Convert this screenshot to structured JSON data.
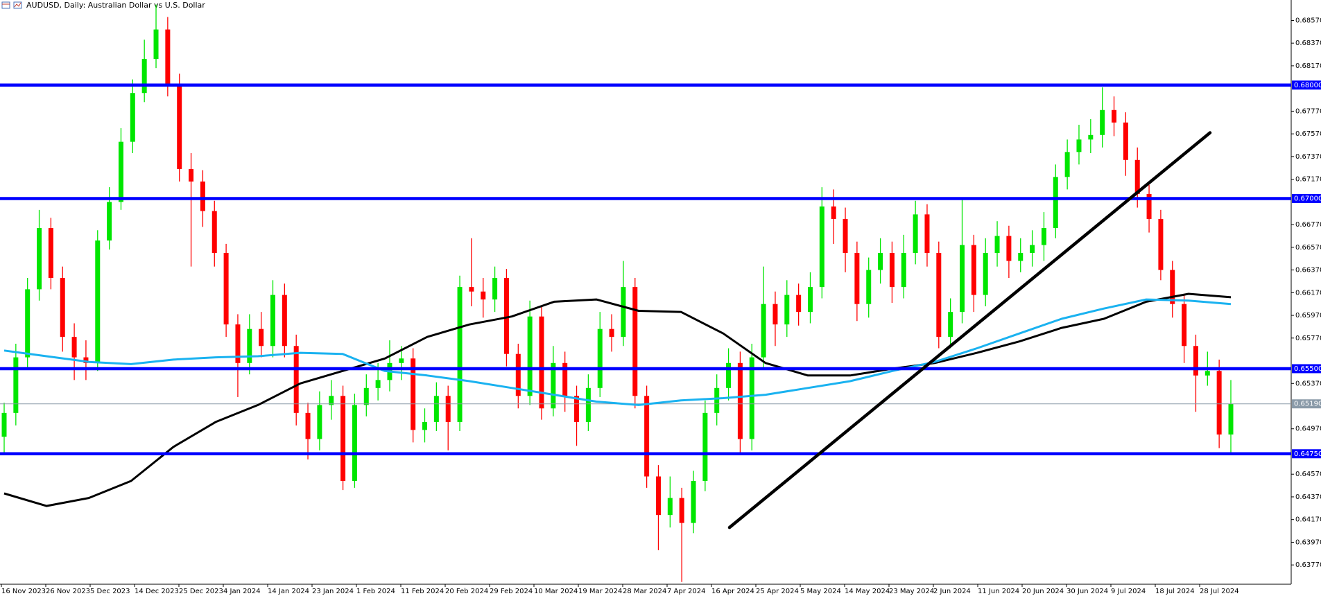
{
  "chart_data": {
    "type": "candlestick",
    "title": "AUDUSD, Daily:  Australian Dollar vs U.S. Dollar",
    "up_color": "#00e600",
    "down_color": "#ff0000",
    "categories": [
      "16 Nov 2023",
      "26 Nov 2023",
      "5 Dec 2023",
      "14 Dec 2023",
      "25 Dec 2023",
      "4 Jan 2024",
      "14 Jan 2024",
      "23 Jan 2024",
      "1 Feb 2024",
      "11 Feb 2024",
      "20 Feb 2024",
      "29 Feb 2024",
      "10 Mar 2024",
      "19 Mar 2024",
      "28 Mar 2024",
      "7 Apr 2024",
      "16 Apr 2024",
      "25 Apr 2024",
      "5 May 2024",
      "14 May 2024",
      "23 May 2024",
      "2 Jun 2024",
      "11 Jun 2024",
      "20 Jun 2024",
      "30 Jun 2024",
      "9 Jul 2024",
      "18 Jul 2024",
      "28 Jul 2024"
    ],
    "candles": [
      [
        0.649,
        0.652,
        0.6475,
        0.6511
      ],
      [
        0.6511,
        0.6572,
        0.65,
        0.656
      ],
      [
        0.656,
        0.663,
        0.655,
        0.662
      ],
      [
        0.662,
        0.669,
        0.661,
        0.6674
      ],
      [
        0.6674,
        0.6683,
        0.662,
        0.663
      ],
      [
        0.663,
        0.664,
        0.6565,
        0.6578
      ],
      [
        0.6578,
        0.659,
        0.654,
        0.656
      ],
      [
        0.656,
        0.6575,
        0.654,
        0.6555
      ],
      [
        0.6555,
        0.6672,
        0.6548,
        0.6663
      ],
      [
        0.6663,
        0.671,
        0.6655,
        0.6697
      ],
      [
        0.6697,
        0.6762,
        0.669,
        0.675
      ],
      [
        0.675,
        0.6805,
        0.674,
        0.6793
      ],
      [
        0.6793,
        0.684,
        0.6785,
        0.6823
      ],
      [
        0.6823,
        0.6871,
        0.6815,
        0.6849
      ],
      [
        0.6849,
        0.686,
        0.679,
        0.6801
      ],
      [
        0.6801,
        0.681,
        0.6715,
        0.6726
      ],
      [
        0.6726,
        0.674,
        0.664,
        0.6715
      ],
      [
        0.6715,
        0.6725,
        0.6675,
        0.6689
      ],
      [
        0.6689,
        0.6698,
        0.664,
        0.6652
      ],
      [
        0.6652,
        0.666,
        0.6578,
        0.6589
      ],
      [
        0.6589,
        0.6598,
        0.6525,
        0.6555
      ],
      [
        0.6555,
        0.6598,
        0.6545,
        0.6585
      ],
      [
        0.6585,
        0.66,
        0.656,
        0.657
      ],
      [
        0.657,
        0.6628,
        0.656,
        0.6615
      ],
      [
        0.6615,
        0.6625,
        0.656,
        0.657
      ],
      [
        0.657,
        0.658,
        0.65,
        0.6511
      ],
      [
        0.6511,
        0.652,
        0.647,
        0.6488
      ],
      [
        0.6488,
        0.653,
        0.6478,
        0.6518
      ],
      [
        0.6518,
        0.654,
        0.6505,
        0.6526
      ],
      [
        0.6526,
        0.6535,
        0.6443,
        0.6451
      ],
      [
        0.6451,
        0.6528,
        0.6445,
        0.6518
      ],
      [
        0.6518,
        0.6545,
        0.6508,
        0.6533
      ],
      [
        0.6533,
        0.6555,
        0.6522,
        0.654
      ],
      [
        0.654,
        0.6575,
        0.653,
        0.6555
      ],
      [
        0.6555,
        0.657,
        0.654,
        0.6559
      ],
      [
        0.6559,
        0.6568,
        0.6485,
        0.6496
      ],
      [
        0.6496,
        0.6515,
        0.6485,
        0.6503
      ],
      [
        0.6503,
        0.6538,
        0.6495,
        0.6526
      ],
      [
        0.6526,
        0.6535,
        0.6478,
        0.6503
      ],
      [
        0.6503,
        0.6632,
        0.6495,
        0.6622
      ],
      [
        0.6622,
        0.6665,
        0.6605,
        0.6618
      ],
      [
        0.6618,
        0.663,
        0.6595,
        0.6611
      ],
      [
        0.6611,
        0.664,
        0.66,
        0.663
      ],
      [
        0.663,
        0.6638,
        0.6552,
        0.6563
      ],
      [
        0.6563,
        0.6572,
        0.6515,
        0.6526
      ],
      [
        0.6526,
        0.661,
        0.6518,
        0.6596
      ],
      [
        0.6596,
        0.6605,
        0.6505,
        0.6515
      ],
      [
        0.6515,
        0.657,
        0.6508,
        0.6555
      ],
      [
        0.6555,
        0.6565,
        0.6512,
        0.6526
      ],
      [
        0.6526,
        0.6535,
        0.6482,
        0.6503
      ],
      [
        0.6503,
        0.6545,
        0.6495,
        0.6533
      ],
      [
        0.6533,
        0.66,
        0.6525,
        0.6585
      ],
      [
        0.6585,
        0.6598,
        0.6565,
        0.6578
      ],
      [
        0.6578,
        0.6645,
        0.657,
        0.6622
      ],
      [
        0.6622,
        0.663,
        0.6515,
        0.6526
      ],
      [
        0.6526,
        0.6535,
        0.6445,
        0.6455
      ],
      [
        0.6455,
        0.6465,
        0.639,
        0.6421
      ],
      [
        0.6421,
        0.6455,
        0.641,
        0.6436
      ],
      [
        0.6436,
        0.6445,
        0.6362,
        0.6414
      ],
      [
        0.6414,
        0.646,
        0.6405,
        0.6451
      ],
      [
        0.6451,
        0.6522,
        0.6442,
        0.6511
      ],
      [
        0.6511,
        0.6545,
        0.65,
        0.6533
      ],
      [
        0.6533,
        0.6568,
        0.6522,
        0.6555
      ],
      [
        0.6555,
        0.6565,
        0.6475,
        0.6488
      ],
      [
        0.6488,
        0.6572,
        0.6478,
        0.656
      ],
      [
        0.656,
        0.664,
        0.655,
        0.6607
      ],
      [
        0.6607,
        0.6618,
        0.657,
        0.6589
      ],
      [
        0.6589,
        0.6628,
        0.6578,
        0.6615
      ],
      [
        0.6615,
        0.6625,
        0.6588,
        0.66
      ],
      [
        0.66,
        0.6635,
        0.659,
        0.6622
      ],
      [
        0.6622,
        0.671,
        0.6612,
        0.6693
      ],
      [
        0.6693,
        0.6708,
        0.666,
        0.6682
      ],
      [
        0.6682,
        0.6692,
        0.6635,
        0.6652
      ],
      [
        0.6652,
        0.6662,
        0.6592,
        0.6607
      ],
      [
        0.6607,
        0.6648,
        0.6595,
        0.6637
      ],
      [
        0.6637,
        0.6665,
        0.6625,
        0.6652
      ],
      [
        0.6652,
        0.6662,
        0.6608,
        0.6622
      ],
      [
        0.6622,
        0.6668,
        0.6612,
        0.6652
      ],
      [
        0.6652,
        0.6698,
        0.6642,
        0.6686
      ],
      [
        0.6686,
        0.6695,
        0.664,
        0.6652
      ],
      [
        0.6652,
        0.6662,
        0.6568,
        0.6578
      ],
      [
        0.6578,
        0.6612,
        0.6568,
        0.66
      ],
      [
        0.66,
        0.67,
        0.659,
        0.6659
      ],
      [
        0.6659,
        0.6668,
        0.66,
        0.6615
      ],
      [
        0.6615,
        0.6665,
        0.6605,
        0.6652
      ],
      [
        0.6652,
        0.668,
        0.664,
        0.6667
      ],
      [
        0.6667,
        0.6676,
        0.663,
        0.6645
      ],
      [
        0.6645,
        0.6665,
        0.6635,
        0.6652
      ],
      [
        0.6652,
        0.6672,
        0.664,
        0.6659
      ],
      [
        0.6659,
        0.6688,
        0.6645,
        0.6674
      ],
      [
        0.6674,
        0.673,
        0.6665,
        0.6719
      ],
      [
        0.6719,
        0.6752,
        0.6708,
        0.6741
      ],
      [
        0.6741,
        0.6765,
        0.673,
        0.6752
      ],
      [
        0.6752,
        0.677,
        0.674,
        0.6756
      ],
      [
        0.6756,
        0.6798,
        0.6745,
        0.6778
      ],
      [
        0.6778,
        0.679,
        0.6755,
        0.6767
      ],
      [
        0.6767,
        0.6776,
        0.672,
        0.6734
      ],
      [
        0.6734,
        0.6745,
        0.6692,
        0.6704
      ],
      [
        0.6704,
        0.6712,
        0.667,
        0.6682
      ],
      [
        0.6682,
        0.669,
        0.6628,
        0.6637
      ],
      [
        0.6637,
        0.6645,
        0.6595,
        0.6607
      ],
      [
        0.6607,
        0.6615,
        0.6555,
        0.657
      ],
      [
        0.657,
        0.658,
        0.6512,
        0.6544
      ],
      [
        0.6544,
        0.6565,
        0.6535,
        0.6548
      ],
      [
        0.6548,
        0.6558,
        0.648,
        0.6492
      ],
      [
        0.6492,
        0.654,
        0.6476,
        0.6519
      ]
    ],
    "moving_averages": [
      {
        "color": "#000000",
        "values": [
          0.644,
          0.6429,
          0.6436,
          0.6451,
          0.6481,
          0.6503,
          0.6518,
          0.6537,
          0.6548,
          0.6559,
          0.6578,
          0.6589,
          0.6596,
          0.6609,
          0.6611,
          0.6601,
          0.66,
          0.6581,
          0.6555,
          0.6544,
          0.6544,
          0.655,
          0.6555,
          0.6564,
          0.6574,
          0.6586,
          0.6594,
          0.6609,
          0.6616,
          0.6613
        ]
      },
      {
        "color": "#1ab2f0",
        "values": [
          0.6566,
          0.6561,
          0.6556,
          0.6554,
          0.6558,
          0.656,
          0.6561,
          0.6564,
          0.6563,
          0.6548,
          0.6544,
          0.6539,
          0.6533,
          0.6527,
          0.6521,
          0.6518,
          0.6522,
          0.6524,
          0.6527,
          0.6533,
          0.6539,
          0.6548,
          0.6556,
          0.6568,
          0.6581,
          0.6594,
          0.6603,
          0.6611,
          0.661,
          0.6607
        ]
      }
    ],
    "trendline": {
      "color": "#000000",
      "values": [
        0.641,
        0.6758
      ]
    },
    "levels": {
      "color": "#0000ff",
      "values": [
        {
          "value": 0.68,
          "label": "0.68000"
        },
        {
          "value": 0.67,
          "label": "0.67000"
        },
        {
          "value": 0.655,
          "label": "0.65500"
        },
        {
          "value": 0.6475,
          "label": "0.64750"
        }
      ]
    },
    "bid": {
      "color": "#8a9aa8",
      "value": 0.6519,
      "label": "0.65190"
    },
    "ylim": [
      0.636,
      0.6875
    ],
    "yticks": [
      {
        "value": 0.6857,
        "label": "0.68570"
      },
      {
        "value": 0.6837,
        "label": "0.68370"
      },
      {
        "value": 0.6817,
        "label": "0.68170"
      },
      {
        "value": 0.6777,
        "label": "0.67770"
      },
      {
        "value": 0.6757,
        "label": "0.67570"
      },
      {
        "value": 0.6737,
        "label": "0.67370"
      },
      {
        "value": 0.6717,
        "label": "0.67170"
      },
      {
        "value": 0.6677,
        "label": "0.66770"
      },
      {
        "value": 0.6657,
        "label": "0.66570"
      },
      {
        "value": 0.6637,
        "label": "0.66370"
      },
      {
        "value": 0.6617,
        "label": "0.66170"
      },
      {
        "value": 0.6597,
        "label": "0.65970"
      },
      {
        "value": 0.6577,
        "label": "0.65770"
      },
      {
        "value": 0.6537,
        "label": "0.65370"
      },
      {
        "value": 0.6497,
        "label": "0.64970"
      },
      {
        "value": 0.6457,
        "label": "0.64570"
      },
      {
        "value": 0.6437,
        "label": "0.64370"
      },
      {
        "value": 0.6417,
        "label": "0.64170"
      },
      {
        "value": 0.6397,
        "label": "0.63970"
      },
      {
        "value": 0.6377,
        "label": "0.63770"
      }
    ],
    "grid": false
  }
}
